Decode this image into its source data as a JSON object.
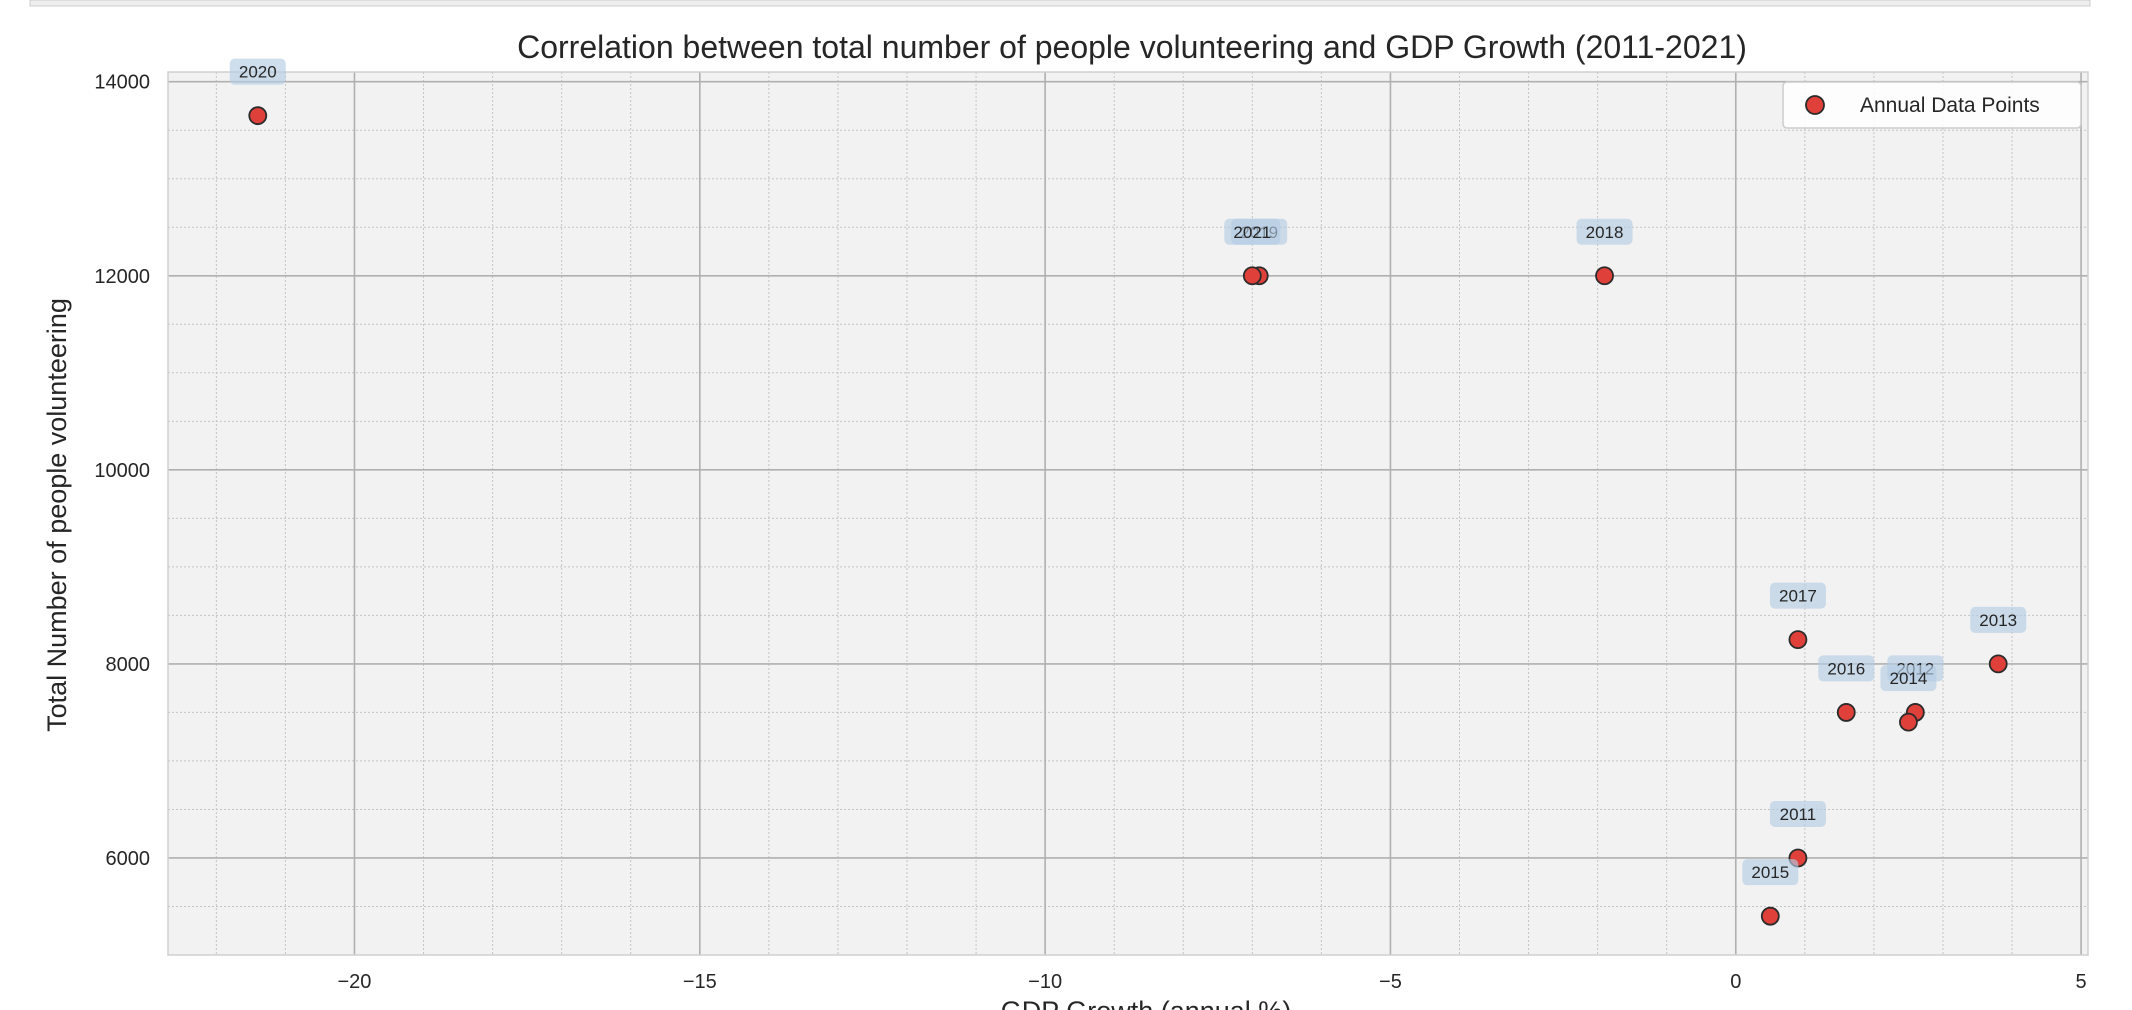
{
  "chart_data": {
    "type": "scatter",
    "title": "Correlation between total number of people volunteering and GDP Growth (2011-2021)",
    "xlabel": "GDP Growth (annual %)",
    "ylabel": "Total Number of people volunteering",
    "xlim": [
      -22.7,
      5.1
    ],
    "ylim": [
      5000,
      14100
    ],
    "xticks": [
      -20,
      -15,
      -10,
      -5,
      0,
      5
    ],
    "yticks": [
      6000,
      8000,
      10000,
      12000,
      14000
    ],
    "xticks_minor_step": 1,
    "yticks_minor_step": 500,
    "grid": true,
    "legend_position": "top-right",
    "series": [
      {
        "name": "Annual Data Points",
        "color": "#e0403a",
        "points": [
          {
            "label": "2011",
            "x": 0.9,
            "y": 6000
          },
          {
            "label": "2012",
            "x": 2.6,
            "y": 7500
          },
          {
            "label": "2013",
            "x": 3.8,
            "y": 8000
          },
          {
            "label": "2014",
            "x": 2.5,
            "y": 7400
          },
          {
            "label": "2015",
            "x": 0.5,
            "y": 5400
          },
          {
            "label": "2016",
            "x": 1.6,
            "y": 7500
          },
          {
            "label": "2017",
            "x": 0.9,
            "y": 8250
          },
          {
            "label": "2018",
            "x": -1.9,
            "y": 12000
          },
          {
            "label": "2019",
            "x": -6.9,
            "y": 12000
          },
          {
            "label": "2020",
            "x": -21.4,
            "y": 13650
          },
          {
            "label": "2021",
            "x": -7.0,
            "y": 12000
          }
        ]
      }
    ]
  }
}
